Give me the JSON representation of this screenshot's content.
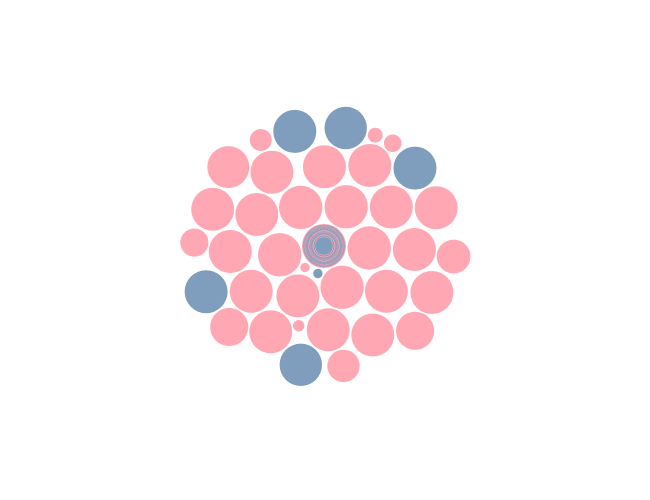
{
  "chart_data": {
    "type": "bubble",
    "title": "",
    "legend": "none",
    "grid": false,
    "series": [
      {
        "color": "#FFA8B4",
        "values": [
          42,
          43,
          42,
          43,
          42,
          43,
          42,
          43,
          42,
          42,
          42,
          42,
          42,
          42,
          42,
          43,
          42,
          42,
          44,
          42,
          42,
          42,
          40,
          41,
          40,
          38,
          40,
          39,
          39,
          40,
          37,
          38,
          38,
          38,
          36,
          34,
          33,
          34,
          33,
          32,
          33,
          31,
          31,
          30,
          28,
          30,
          29,
          28,
          28,
          28,
          28,
          26,
          26,
          26,
          26,
          24,
          23,
          23,
          21,
          24,
          22,
          19,
          21,
          23,
          21,
          20,
          19,
          18,
          19,
          20,
          19,
          18,
          18,
          16,
          16,
          15,
          17,
          15,
          16,
          15,
          15,
          13,
          11,
          11,
          11,
          11,
          12,
          11,
          8,
          8,
          7,
          7,
          5,
          3,
          2
        ]
      },
      {
        "color": "#7F9DBD",
        "values": [
          42,
          42,
          42,
          41,
          40,
          41,
          41,
          38,
          39,
          38,
          36,
          35,
          35,
          33,
          31,
          30,
          29,
          28,
          26,
          24,
          23,
          20,
          20,
          19,
          18,
          16,
          15,
          13,
          10,
          7,
          6,
          2
        ]
      }
    ]
  }
}
